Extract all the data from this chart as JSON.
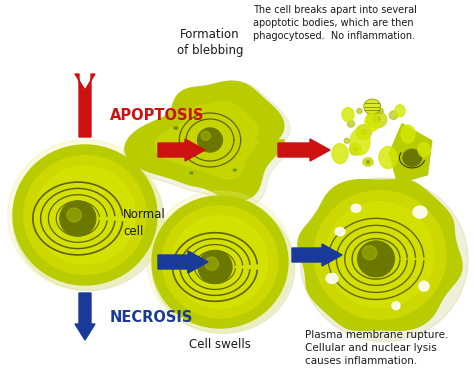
{
  "bg_color": "#ffffff",
  "apoptosis_label": "APOPTOSIS",
  "necrosis_label": "NECROSIS",
  "normal_cell_label": "Normal\ncell",
  "formation_label": "Formation\nof blebbing",
  "cell_swells_label": "Cell swells",
  "apoptosis_desc": "The cell breaks apart into several\napoptotic bodies, which are then\nphagocytosed.  No inflammation.",
  "necrosis_desc": "Plasma membrane rupture.\nCellular and nuclear lysis\ncauses inflammation.",
  "arrow_red": "#cc1111",
  "arrow_blue": "#1a3a9a",
  "text_dark": "#1a1a1a",
  "cell_outer": "#b8cc00",
  "cell_mid": "#ccd800",
  "cell_light": "#dde800",
  "cell_nucleus_outer": "#6a7800",
  "cell_nucleus_inner": "#8a9a10",
  "ring_color": "#4a4a00",
  "shadow_color": "#999900"
}
